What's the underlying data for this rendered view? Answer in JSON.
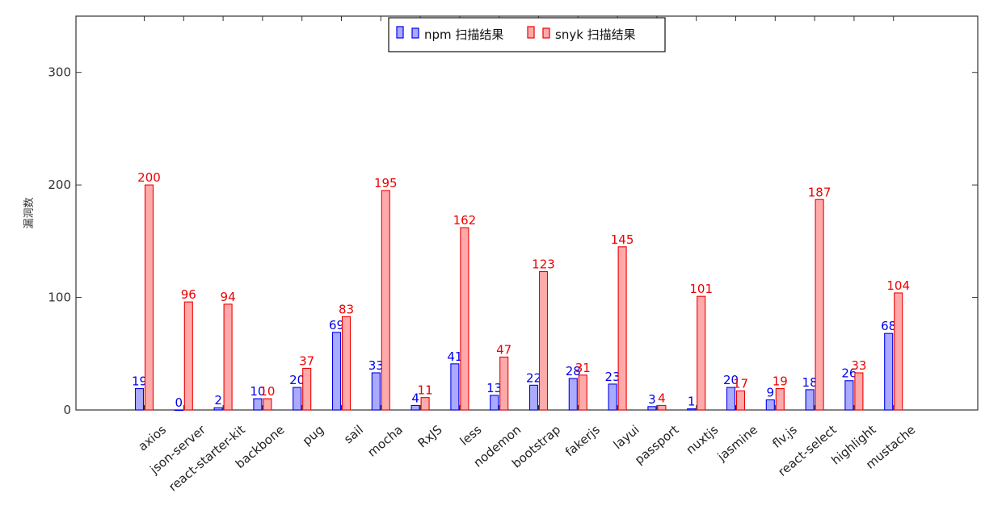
{
  "chart_data": {
    "type": "bar",
    "title": "",
    "xlabel": "",
    "ylabel": "漏洞数",
    "ylim": [
      0,
      350
    ],
    "yticks": [
      0,
      100,
      200,
      300
    ],
    "categories": [
      "axios",
      "json-server",
      "react-starter-kit",
      "backbone",
      "pug",
      "sail",
      "mocha",
      "RxJS",
      "less",
      "nodemon",
      "bootstrap",
      "fakerjs",
      "layui",
      "passport",
      "nuxtjs",
      "jasmine",
      "flv.js",
      "react-select",
      "highlight",
      "mustache"
    ],
    "series": [
      {
        "name": "npm 扫描结果",
        "color": "#0000ee",
        "fill": "#aaaaff",
        "values": [
          19,
          0,
          2,
          10,
          20,
          69,
          33,
          4,
          41,
          13,
          22,
          28,
          23,
          3,
          1,
          20,
          9,
          18,
          26,
          68
        ]
      },
      {
        "name": "snyk 扫描结果",
        "color": "#ee0000",
        "fill": "#ffaaaa",
        "values": [
          200,
          96,
          94,
          10,
          37,
          83,
          195,
          11,
          162,
          47,
          123,
          31,
          145,
          4,
          101,
          17,
          19,
          187,
          33,
          104
        ]
      }
    ],
    "legend_position": "top-center",
    "grid": false
  }
}
